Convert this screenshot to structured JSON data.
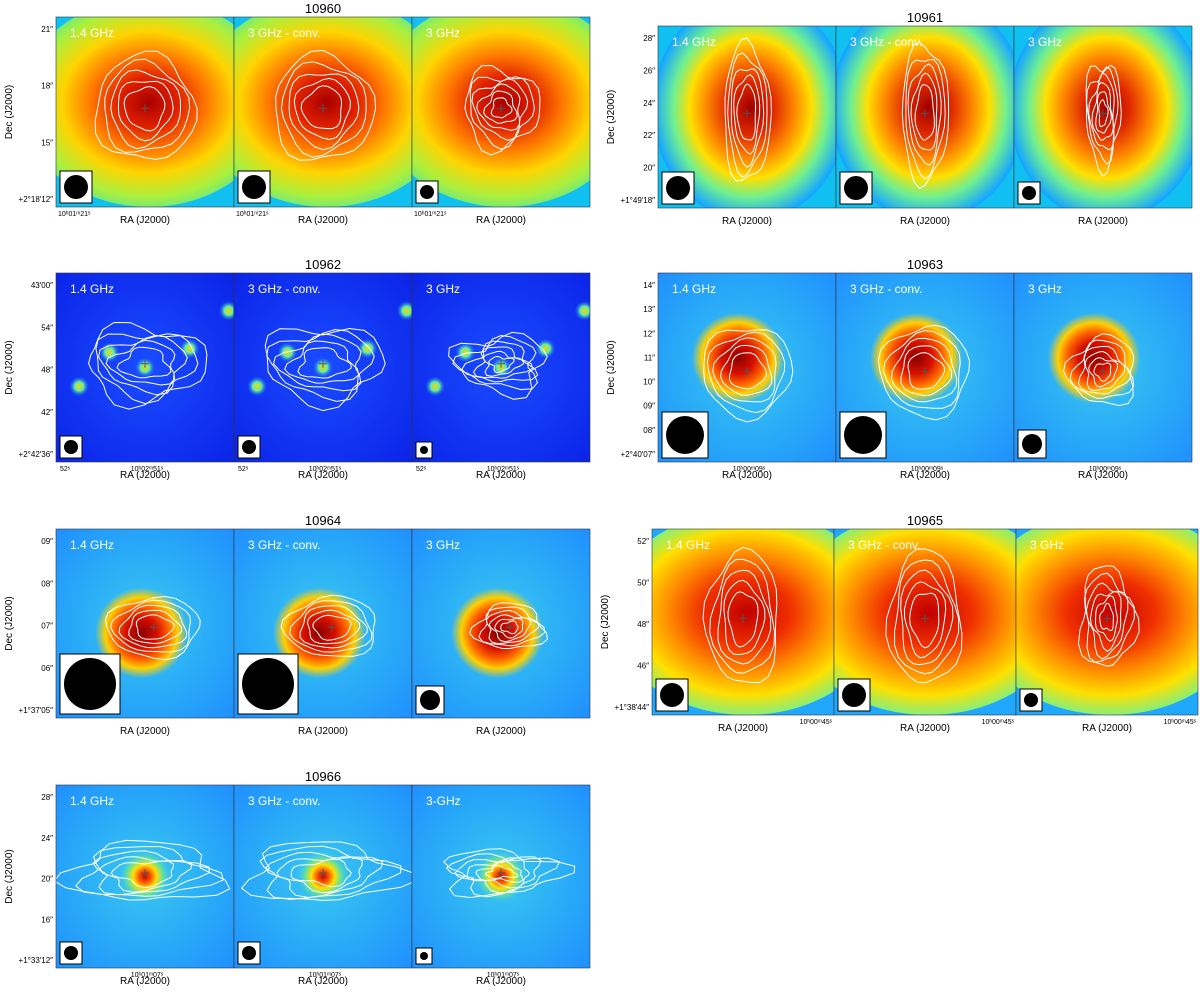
{
  "figure": {
    "axis_labels": {
      "x": "RA (J2000)",
      "y": "Dec (J2000)"
    },
    "panel_labels": [
      "1.4 GHz",
      "3 GHz - conv.",
      "3 GHz"
    ],
    "colors": {
      "hot": "#8b0000",
      "cool": "#0a3cff",
      "contour": "#ffffff"
    }
  },
  "sources": [
    {
      "id": "10960",
      "background": "cyan",
      "panel_labels": [
        "1.4 GHz",
        "3 GHz - conv.",
        "3 GHz"
      ],
      "dec_ticks": [
        "21″",
        "18″",
        "15″",
        "+2°18′12″"
      ],
      "ra_ticks": [
        [
          "10ʰ01ᵐ21ˢ"
        ],
        [
          "10ʰ01ᵐ21ˢ"
        ],
        [
          "10ʰ01ᵐ21ˢ"
        ]
      ],
      "beam_sizes": [
        "large",
        "large",
        "small"
      ]
    },
    {
      "id": "10961",
      "background": "blue",
      "panel_labels": [
        "1.4 GHz",
        "3 GHz - conv.",
        "3 GHz"
      ],
      "dec_ticks": [
        "28″",
        "26″",
        "24″",
        "22″",
        "20″",
        "+1°49′18″"
      ],
      "ra_ticks": [
        [],
        [],
        []
      ],
      "beam_sizes": [
        "large",
        "large",
        "small"
      ]
    },
    {
      "id": "10962",
      "background": "deepblue",
      "panel_labels": [
        "1.4 GHz",
        "3 GHz - conv.",
        "3 GHz"
      ],
      "dec_ticks": [
        "43′00″",
        "54″",
        "48″",
        "42″",
        "+2°42′36″"
      ],
      "ra_ticks": [
        [
          "52ˢ",
          "10ʰ02ᵐ51ˢ"
        ],
        [
          "52ˢ",
          "10ʰ02ᵐ51ˢ"
        ],
        [
          "52ˢ",
          "10ʰ02ᵐ51ˢ"
        ]
      ],
      "beam_sizes": [
        "small",
        "small",
        "tiny"
      ]
    },
    {
      "id": "10963",
      "background": "light",
      "panel_labels": [
        "1.4 GHz",
        "3 GHz - conv.",
        "3 GHz"
      ],
      "dec_ticks": [
        "14″",
        "13″",
        "12″",
        "11″",
        "10″",
        "09″",
        "08″",
        "+2°40′07″"
      ],
      "ra_ticks": [
        [
          "10ʰ00ᵐ09ˢ"
        ],
        [
          "10ʰ00ᵐ09ˢ"
        ],
        [
          "10ʰ00ᵐ09ˢ"
        ]
      ],
      "beam_sizes": [
        "huge",
        "huge",
        "medium"
      ]
    },
    {
      "id": "10964",
      "background": "light",
      "panel_labels": [
        "1.4 GHz",
        "3 GHz - conv.",
        "3 GHz"
      ],
      "dec_ticks": [
        "09″",
        "08″",
        "07″",
        "06″",
        "+1°37′05″"
      ],
      "ra_ticks": [
        [],
        [],
        []
      ],
      "beam_sizes": [
        "giant",
        "giant",
        "medium"
      ]
    },
    {
      "id": "10965",
      "background": "wide",
      "panel_labels": [
        "1.4 GHz",
        "3 GHz - conv.",
        "3 GHz"
      ],
      "dec_ticks": [
        "52″",
        "50″",
        "48″",
        "46″",
        "+1°38′44″"
      ],
      "ra_ticks": [
        [
          "10ʰ00ᵐ45ˢ"
        ],
        [
          "10ʰ00ᵐ45ˢ"
        ],
        [
          "10ʰ00ᵐ45ˢ"
        ]
      ],
      "beam_sizes": [
        "large",
        "large",
        "small"
      ]
    },
    {
      "id": "10966",
      "background": "pointlike",
      "panel_labels": [
        "1.4 GHz",
        "3 GHz - conv.",
        "3-GHz"
      ],
      "dec_ticks": [
        "28″",
        "24″",
        "20″",
        "16″",
        "+1°33′12″"
      ],
      "ra_ticks": [
        [
          "10ʰ01ᵐ07ˢ"
        ],
        [
          "10ʰ01ᵐ07ˢ"
        ],
        [
          "10ʰ01ᵐ07ˢ"
        ]
      ],
      "beam_sizes": [
        "small",
        "small",
        "tiny"
      ]
    }
  ]
}
